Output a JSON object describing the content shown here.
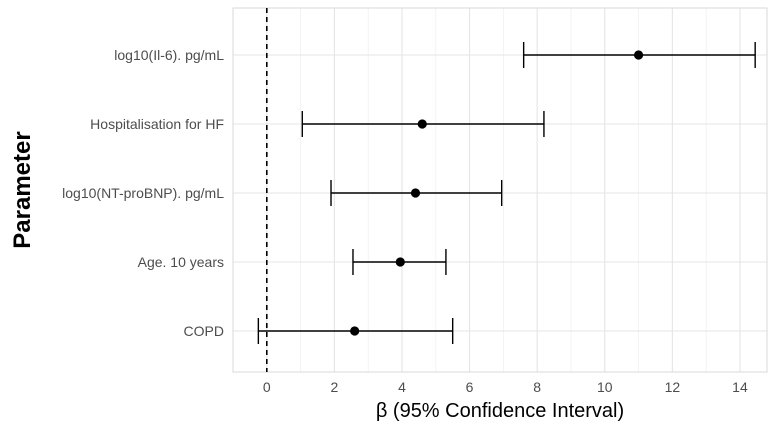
{
  "chart_data": {
    "type": "forest",
    "title": "",
    "xlabel": "β (95% Confidence Interval)",
    "ylabel": "Parameter",
    "xlim": [
      -1,
      14.8
    ],
    "x_ticks": [
      0,
      2,
      4,
      6,
      8,
      10,
      12,
      14
    ],
    "grid": true,
    "reference_line": {
      "x": 0,
      "style": "dashed"
    },
    "categories": [
      "log10(Il-6). pg/mL",
      "Hospitalisation for HF",
      "log10(NT-proBNP). pg/mL",
      "Age. 10 years",
      "COPD"
    ],
    "estimates": [
      11.0,
      4.6,
      4.4,
      3.95,
      2.6
    ],
    "lower": [
      7.6,
      1.05,
      1.9,
      2.55,
      -0.25
    ],
    "upper": [
      14.45,
      8.2,
      6.95,
      5.3,
      5.5
    ],
    "colors": {
      "panel_bg": "#ffffff",
      "grid": "#e5e5e5",
      "mark": "#000000",
      "tick_text": "#4d4d4d"
    }
  }
}
